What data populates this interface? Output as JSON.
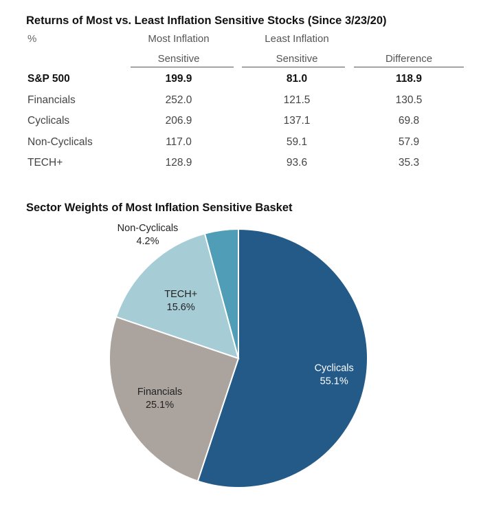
{
  "chart_data": [
    {
      "type": "table",
      "title": "Returns of Most vs. Least Inflation Sensitive Stocks (Since 3/23/20)",
      "unit": "%",
      "columns": [
        {
          "line1": "Most Inflation",
          "line2": "Sensitive"
        },
        {
          "line1": "Least Inflation",
          "line2": "Sensitive"
        },
        {
          "line1": "",
          "line2": "Difference"
        }
      ],
      "rows": [
        {
          "label": "S&P 500",
          "values": [
            "199.9",
            "81.0",
            "118.9"
          ],
          "bold": true
        },
        {
          "label": "Financials",
          "values": [
            "252.0",
            "121.5",
            "130.5"
          ],
          "bold": false
        },
        {
          "label": "Cyclicals",
          "values": [
            "206.9",
            "137.1",
            "69.8"
          ],
          "bold": false
        },
        {
          "label": "Non-Cyclicals",
          "values": [
            "117.0",
            "59.1",
            "57.9"
          ],
          "bold": false
        },
        {
          "label": "TECH+",
          "values": [
            "128.9",
            "93.6",
            "35.3"
          ],
          "bold": false
        }
      ]
    },
    {
      "type": "pie",
      "title": "Sector Weights of Most Inflation Sensitive Basket",
      "slices": [
        {
          "label": "Cyclicals",
          "value": 55.1,
          "display": "55.1%",
          "color": "#245a87",
          "text_color": "#ffffff"
        },
        {
          "label": "Financials",
          "value": 25.1,
          "display": "25.1%",
          "color": "#aaa39e",
          "text_color": "#222222"
        },
        {
          "label": "TECH+",
          "value": 15.6,
          "display": "15.6%",
          "color": "#a6cdd6",
          "text_color": "#222222"
        },
        {
          "label": "Non-Cyclicals",
          "value": 4.2,
          "display": "4.2%",
          "color": "#4f9db6",
          "text_color": "#222222"
        }
      ]
    }
  ]
}
